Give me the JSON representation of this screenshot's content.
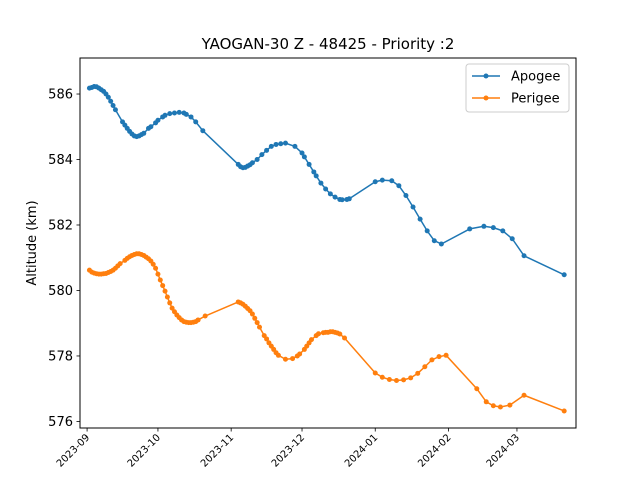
{
  "chart_data": {
    "type": "line",
    "title": "YAOGAN-30 Z - 48425 - Priority :2",
    "xlabel": "",
    "ylabel": "Altitude (km)",
    "xlim": [
      "2023-08-29",
      "2024-03-26"
    ],
    "ylim": [
      575.8,
      587.1
    ],
    "y_ticks": [
      576,
      578,
      580,
      582,
      584,
      586
    ],
    "x_ticks": [
      "2023-09-01",
      "2023-10-01",
      "2023-11-01",
      "2023-12-01",
      "2024-01-01",
      "2024-02-01",
      "2024-03-01"
    ],
    "x_tick_labels": [
      "2023-09",
      "2023-10",
      "2023-11",
      "2023-12",
      "2024-01",
      "2024-02",
      "2024-03"
    ],
    "grid": false,
    "legend_position": "top-right",
    "series": [
      {
        "name": "Apogee",
        "color": "#1f77b4",
        "points": [
          [
            "2023-09-02",
            586.18
          ],
          [
            "2023-09-03",
            586.2
          ],
          [
            "2023-09-04",
            586.23
          ],
          [
            "2023-09-05",
            586.22
          ],
          [
            "2023-09-06",
            586.18
          ],
          [
            "2023-09-07",
            586.13
          ],
          [
            "2023-09-08",
            586.08
          ],
          [
            "2023-09-09",
            586.0
          ],
          [
            "2023-09-10",
            585.9
          ],
          [
            "2023-09-11",
            585.78
          ],
          [
            "2023-09-12",
            585.65
          ],
          [
            "2023-09-13",
            585.52
          ],
          [
            "2023-09-16",
            585.15
          ],
          [
            "2023-09-17",
            585.05
          ],
          [
            "2023-09-18",
            584.95
          ],
          [
            "2023-09-19",
            584.86
          ],
          [
            "2023-09-20",
            584.78
          ],
          [
            "2023-09-21",
            584.72
          ],
          [
            "2023-09-22",
            584.7
          ],
          [
            "2023-09-23",
            584.72
          ],
          [
            "2023-09-24",
            584.76
          ],
          [
            "2023-09-25",
            584.8
          ],
          [
            "2023-09-27",
            584.95
          ],
          [
            "2023-09-28",
            585.0
          ],
          [
            "2023-09-30",
            585.12
          ],
          [
            "2023-10-01",
            585.2
          ],
          [
            "2023-10-03",
            585.3
          ],
          [
            "2023-10-04",
            585.35
          ],
          [
            "2023-10-06",
            585.4
          ],
          [
            "2023-10-08",
            585.42
          ],
          [
            "2023-10-10",
            585.44
          ],
          [
            "2023-10-12",
            585.42
          ],
          [
            "2023-10-13",
            585.38
          ],
          [
            "2023-10-15",
            585.3
          ],
          [
            "2023-10-17",
            585.15
          ],
          [
            "2023-10-20",
            584.88
          ],
          [
            "2023-11-04",
            583.85
          ],
          [
            "2023-11-05",
            583.78
          ],
          [
            "2023-11-06",
            583.75
          ],
          [
            "2023-11-07",
            583.76
          ],
          [
            "2023-11-08",
            583.8
          ],
          [
            "2023-11-09",
            583.84
          ],
          [
            "2023-11-10",
            583.9
          ],
          [
            "2023-11-12",
            584.0
          ],
          [
            "2023-11-14",
            584.15
          ],
          [
            "2023-11-16",
            584.28
          ],
          [
            "2023-11-18",
            584.4
          ],
          [
            "2023-11-20",
            584.46
          ],
          [
            "2023-11-22",
            584.48
          ],
          [
            "2023-11-24",
            584.5
          ],
          [
            "2023-11-28",
            584.4
          ],
          [
            "2023-12-01",
            584.2
          ],
          [
            "2023-12-02",
            584.08
          ],
          [
            "2023-12-04",
            583.85
          ],
          [
            "2023-12-06",
            583.62
          ],
          [
            "2023-12-07",
            583.5
          ],
          [
            "2023-12-09",
            583.28
          ],
          [
            "2023-12-11",
            583.1
          ],
          [
            "2023-12-13",
            582.95
          ],
          [
            "2023-12-15",
            582.85
          ],
          [
            "2023-12-17",
            582.78
          ],
          [
            "2023-12-18",
            582.77
          ],
          [
            "2023-12-20",
            582.78
          ],
          [
            "2023-12-21",
            582.8
          ],
          [
            "2024-01-01",
            583.32
          ],
          [
            "2024-01-04",
            583.37
          ],
          [
            "2024-01-08",
            583.35
          ],
          [
            "2024-01-11",
            583.2
          ],
          [
            "2024-01-14",
            582.9
          ],
          [
            "2024-01-17",
            582.55
          ],
          [
            "2024-01-20",
            582.18
          ],
          [
            "2024-01-23",
            581.82
          ],
          [
            "2024-01-26",
            581.52
          ],
          [
            "2024-01-29",
            581.42
          ],
          [
            "2024-02-10",
            581.88
          ],
          [
            "2024-02-16",
            581.96
          ],
          [
            "2024-02-20",
            581.92
          ],
          [
            "2024-02-24",
            581.82
          ],
          [
            "2024-02-28",
            581.58
          ],
          [
            "2024-03-04",
            581.06
          ],
          [
            "2024-03-21",
            580.48
          ]
        ]
      },
      {
        "name": "Perigee",
        "color": "#ff7f0e",
        "points": [
          [
            "2023-09-02",
            580.62
          ],
          [
            "2023-09-03",
            580.56
          ],
          [
            "2023-09-04",
            580.53
          ],
          [
            "2023-09-05",
            580.51
          ],
          [
            "2023-09-06",
            580.5
          ],
          [
            "2023-09-07",
            580.5
          ],
          [
            "2023-09-08",
            580.51
          ],
          [
            "2023-09-09",
            580.52
          ],
          [
            "2023-09-10",
            580.55
          ],
          [
            "2023-09-11",
            580.58
          ],
          [
            "2023-09-12",
            580.62
          ],
          [
            "2023-09-13",
            580.68
          ],
          [
            "2023-09-14",
            580.75
          ],
          [
            "2023-09-15",
            580.82
          ],
          [
            "2023-09-17",
            580.92
          ],
          [
            "2023-09-18",
            580.98
          ],
          [
            "2023-09-19",
            581.03
          ],
          [
            "2023-09-20",
            581.07
          ],
          [
            "2023-09-21",
            581.1
          ],
          [
            "2023-09-22",
            581.12
          ],
          [
            "2023-09-23",
            581.12
          ],
          [
            "2023-09-24",
            581.1
          ],
          [
            "2023-09-25",
            581.07
          ],
          [
            "2023-09-26",
            581.02
          ],
          [
            "2023-09-27",
            580.97
          ],
          [
            "2023-09-28",
            580.9
          ],
          [
            "2023-09-29",
            580.8
          ],
          [
            "2023-09-30",
            580.68
          ],
          [
            "2023-10-01",
            580.5
          ],
          [
            "2023-10-02",
            580.32
          ],
          [
            "2023-10-03",
            580.15
          ],
          [
            "2023-10-04",
            579.98
          ],
          [
            "2023-10-05",
            579.8
          ],
          [
            "2023-10-06",
            579.62
          ],
          [
            "2023-10-07",
            579.46
          ],
          [
            "2023-10-08",
            579.35
          ],
          [
            "2023-10-09",
            579.25
          ],
          [
            "2023-10-10",
            579.17
          ],
          [
            "2023-10-11",
            579.1
          ],
          [
            "2023-10-12",
            579.05
          ],
          [
            "2023-10-13",
            579.03
          ],
          [
            "2023-10-14",
            579.02
          ],
          [
            "2023-10-15",
            579.02
          ],
          [
            "2023-10-16",
            579.03
          ],
          [
            "2023-10-17",
            579.05
          ],
          [
            "2023-10-18",
            579.1
          ],
          [
            "2023-10-21",
            579.22
          ],
          [
            "2023-11-04",
            579.65
          ],
          [
            "2023-11-05",
            579.62
          ],
          [
            "2023-11-06",
            579.58
          ],
          [
            "2023-11-07",
            579.52
          ],
          [
            "2023-11-08",
            579.45
          ],
          [
            "2023-11-09",
            579.38
          ],
          [
            "2023-11-10",
            579.28
          ],
          [
            "2023-11-11",
            579.15
          ],
          [
            "2023-11-12",
            579.02
          ],
          [
            "2023-11-13",
            578.88
          ],
          [
            "2023-11-15",
            578.62
          ],
          [
            "2023-11-16",
            578.52
          ],
          [
            "2023-11-17",
            578.4
          ],
          [
            "2023-11-18",
            578.3
          ],
          [
            "2023-11-19",
            578.2
          ],
          [
            "2023-11-20",
            578.1
          ],
          [
            "2023-11-21",
            578.02
          ],
          [
            "2023-11-24",
            577.9
          ],
          [
            "2023-11-27",
            577.92
          ],
          [
            "2023-11-29",
            578.0
          ],
          [
            "2023-11-30",
            578.06
          ],
          [
            "2023-12-02",
            578.2
          ],
          [
            "2023-12-03",
            578.3
          ],
          [
            "2023-12-04",
            578.4
          ],
          [
            "2023-12-05",
            578.5
          ],
          [
            "2023-12-07",
            578.62
          ],
          [
            "2023-12-08",
            578.68
          ],
          [
            "2023-12-10",
            578.71
          ],
          [
            "2023-12-11",
            578.72
          ],
          [
            "2023-12-12",
            578.72
          ],
          [
            "2023-12-13",
            578.74
          ],
          [
            "2023-12-14",
            578.74
          ],
          [
            "2023-12-15",
            578.72
          ],
          [
            "2023-12-16",
            578.7
          ],
          [
            "2023-12-17",
            578.67
          ],
          [
            "2023-12-19",
            578.55
          ],
          [
            "2024-01-01",
            577.48
          ],
          [
            "2024-01-04",
            577.35
          ],
          [
            "2024-01-07",
            577.28
          ],
          [
            "2024-01-10",
            577.25
          ],
          [
            "2024-01-13",
            577.27
          ],
          [
            "2024-01-16",
            577.33
          ],
          [
            "2024-01-19",
            577.47
          ],
          [
            "2024-01-22",
            577.67
          ],
          [
            "2024-01-25",
            577.88
          ],
          [
            "2024-01-28",
            577.98
          ],
          [
            "2024-01-31",
            578.02
          ],
          [
            "2024-02-13",
            577.0
          ],
          [
            "2024-02-17",
            576.6
          ],
          [
            "2024-02-20",
            576.48
          ],
          [
            "2024-02-23",
            576.44
          ],
          [
            "2024-02-27",
            576.5
          ],
          [
            "2024-03-04",
            576.8
          ],
          [
            "2024-03-21",
            576.32
          ]
        ]
      }
    ]
  }
}
